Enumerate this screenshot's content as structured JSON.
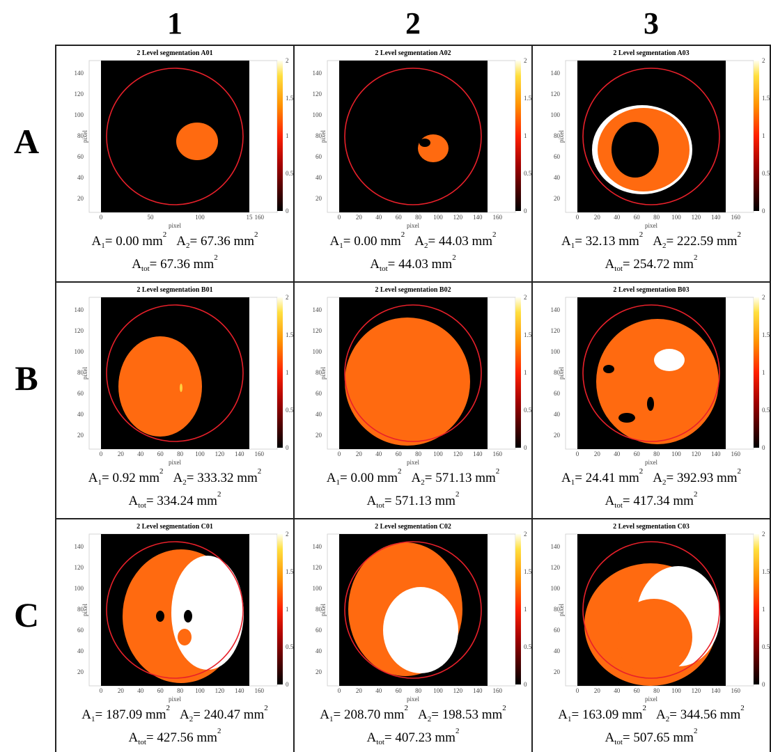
{
  "column_labels": [
    "1",
    "2",
    "3"
  ],
  "row_labels": [
    "A",
    "B",
    "C"
  ],
  "formula": {
    "area": "A",
    "sub1": "1",
    "sub2": "2",
    "subtot": "tot",
    "equals": "= ",
    "unit": " mm",
    "unit_power": "2"
  },
  "axes": {
    "x_label": "pixel",
    "y_label": "pixel",
    "yticks": [
      "20",
      "40",
      "60",
      "80",
      "100",
      "120",
      "140"
    ],
    "colorbar_ticks": [
      "0",
      "0.5",
      "1",
      "1.5",
      "2"
    ]
  },
  "panels": [
    {
      "title": "2 Level segmentation A01",
      "xticks": [
        "0",
        "50",
        "100",
        "15",
        "160"
      ],
      "a1": "0.00",
      "a2": "67.36",
      "atot": "67.36"
    },
    {
      "title": "2 Level segmentation A02",
      "xticks": [
        "0",
        "20",
        "40",
        "60",
        "80",
        "100",
        "120",
        "140",
        "160"
      ],
      "a1": "0.00",
      "a2": "44.03",
      "atot": "44.03"
    },
    {
      "title": "2 Level segmentation A03",
      "xticks": [
        "0",
        "20",
        "40",
        "60",
        "80",
        "100",
        "120",
        "140",
        "160"
      ],
      "a1": "32.13",
      "a2": "222.59",
      "atot": "254.72"
    },
    {
      "title": "2 Level segmentation B01",
      "xticks": [
        "0",
        "20",
        "40",
        "60",
        "80",
        "100",
        "120",
        "140",
        "160"
      ],
      "a1": "0.92",
      "a2": "333.32",
      "atot": "334.24"
    },
    {
      "title": "2 Level segmentation B02",
      "xticks": [
        "0",
        "20",
        "40",
        "60",
        "80",
        "100",
        "120",
        "140",
        "160"
      ],
      "a1": "0.00",
      "a2": "571.13",
      "atot": "571.13"
    },
    {
      "title": "2 Level segmentation B03",
      "xticks": [
        "0",
        "20",
        "40",
        "60",
        "80",
        "100",
        "120",
        "140",
        "160"
      ],
      "a1": "24.41",
      "a2": "392.93",
      "atot": "417.34"
    },
    {
      "title": "2 Level segmentation C01",
      "xticks": [
        "0",
        "20",
        "40",
        "60",
        "80",
        "100",
        "120",
        "140",
        "160"
      ],
      "a1": "187.09",
      "a2": "240.47",
      "atot": "427.56"
    },
    {
      "title": "2 Level segmentation C02",
      "xticks": [
        "0",
        "20",
        "40",
        "60",
        "80",
        "100",
        "120",
        "140",
        "160"
      ],
      "a1": "208.70",
      "a2": "198.53",
      "atot": "407.23"
    },
    {
      "title": "2 Level segmentation C03",
      "xticks": [
        "0",
        "20",
        "40",
        "60",
        "80",
        "100",
        "120",
        "140",
        "160"
      ],
      "a1": "163.09",
      "a2": "344.56",
      "atot": "507.65"
    }
  ]
}
